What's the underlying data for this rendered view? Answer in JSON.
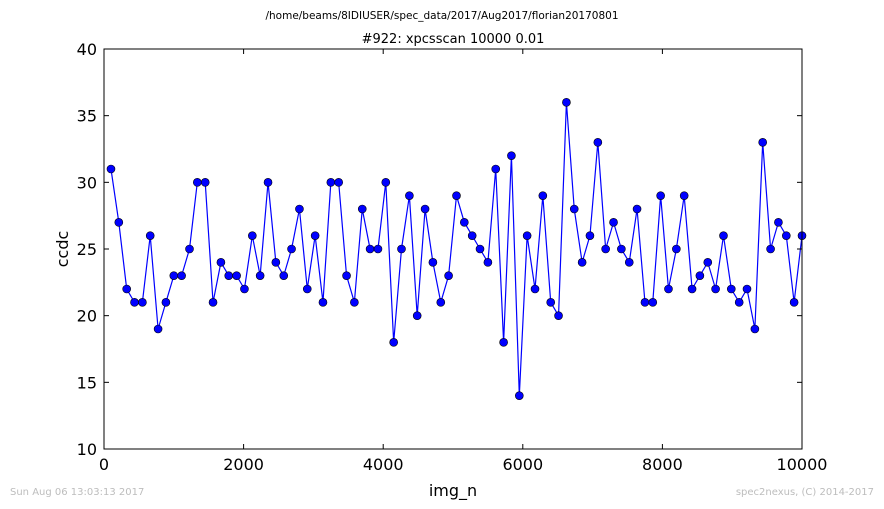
{
  "suptitle": "/home/beams/8IDIUSER/spec_data/2017/Aug2017/florian20170801",
  "footer": {
    "timestamp": "Sun Aug 06 13:03:13 2017",
    "credit": "spec2nexus, (C) 2014-2017"
  },
  "colors": {
    "series": "#0000ff",
    "axes": "#000000",
    "footer": "#bdbdbd"
  },
  "chart_data": {
    "type": "line",
    "title": "#922: xpcsscan 10000 0.01",
    "xlabel": "img_n",
    "ylabel": "ccdc",
    "xlim": [
      0,
      10000
    ],
    "ylim": [
      10,
      40
    ],
    "xticks": [
      0,
      2000,
      4000,
      6000,
      8000,
      10000
    ],
    "yticks": [
      10,
      15,
      20,
      25,
      30,
      35,
      40
    ],
    "grid": false,
    "marker": "circle",
    "series": [
      {
        "x": [
          100,
          212,
          325,
          437,
          550,
          662,
          775,
          887,
          1000,
          1112,
          1225,
          1337,
          1450,
          1562,
          1675,
          1787,
          1900,
          2012,
          2125,
          2237,
          2350,
          2462,
          2575,
          2687,
          2800,
          2912,
          3025,
          3137,
          3250,
          3362,
          3475,
          3587,
          3700,
          3812,
          3925,
          4037,
          4150,
          4262,
          4375,
          4487,
          4600,
          4712,
          4825,
          4937,
          5050,
          5162,
          5275,
          5387,
          5500,
          5612,
          5725,
          5837,
          5950,
          6062,
          6175,
          6287,
          6400,
          6512,
          6625,
          6737,
          6850,
          6962,
          7075,
          7187,
          7300,
          7412,
          7525,
          7637,
          7750,
          7862,
          7975,
          8087,
          8200,
          8312,
          8425,
          8537,
          8650,
          8762,
          8875,
          8987,
          9100,
          9212,
          9325,
          9437,
          9550,
          9662,
          9775,
          9887,
          10000
        ],
        "y": [
          31,
          27,
          22,
          21,
          21,
          26,
          19,
          21,
          23,
          23,
          25,
          30,
          30,
          21,
          24,
          23,
          23,
          22,
          26,
          23,
          30,
          24,
          23,
          25,
          28,
          22,
          26,
          21,
          30,
          30,
          23,
          21,
          28,
          25,
          25,
          30,
          18,
          25,
          29,
          20,
          28,
          24,
          21,
          23,
          29,
          27,
          26,
          25,
          24,
          31,
          18,
          32,
          14,
          26,
          22,
          29,
          21,
          20,
          36,
          28,
          24,
          26,
          33,
          25,
          27,
          25,
          24,
          28,
          21,
          21,
          29,
          22,
          25,
          29,
          22,
          23,
          24,
          22,
          26,
          22,
          21,
          22,
          19,
          33,
          25,
          27,
          26,
          21,
          26
        ]
      }
    ]
  }
}
